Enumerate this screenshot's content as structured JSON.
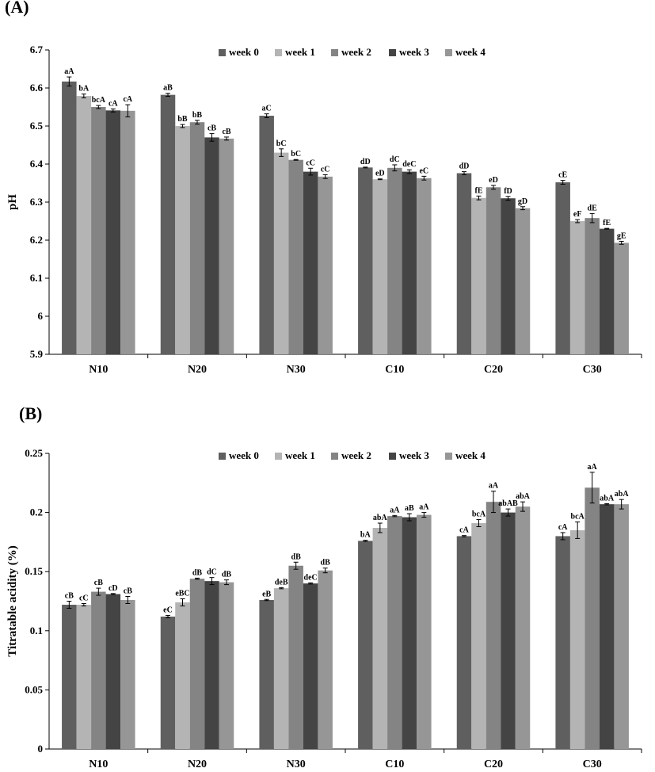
{
  "panels": {
    "a_label": "(A)",
    "b_label": "(B)"
  },
  "chart_data": [
    {
      "type": "bar",
      "panel": "(A)",
      "title": "",
      "xlabel": "",
      "ylabel": "pH",
      "ylim": [
        5.9,
        6.7
      ],
      "yticks": [
        "5.9",
        "6",
        "6.1",
        "6.2",
        "6.3",
        "6.4",
        "6.5",
        "6.6",
        "6.7"
      ],
      "categories": [
        "N10",
        "N20",
        "N30",
        "C10",
        "C20",
        "C30"
      ],
      "legend_position": "top-center",
      "series": [
        {
          "name": "week 0",
          "color": "#5f5f5f",
          "values": [
            6.617,
            6.582,
            6.527,
            6.391,
            6.376,
            6.352
          ],
          "errors": [
            0.012,
            0.004,
            0.005,
            0.001,
            0.004,
            0.005
          ],
          "labels": [
            "aA",
            "aB",
            "aC",
            "dD",
            "dD",
            "cE"
          ]
        },
        {
          "name": "week 1",
          "color": "#b4b4b4",
          "values": [
            6.579,
            6.5,
            6.43,
            6.36,
            6.311,
            6.25
          ],
          "errors": [
            0.005,
            0.004,
            0.01,
            0.001,
            0.005,
            0.004
          ],
          "labels": [
            "bA",
            "bB",
            "bC",
            "eD",
            "fE",
            "eF"
          ]
        },
        {
          "name": "week 2",
          "color": "#848484",
          "values": [
            6.55,
            6.51,
            6.411,
            6.39,
            6.339,
            6.258
          ],
          "errors": [
            0.004,
            0.005,
            0.001,
            0.008,
            0.005,
            0.012
          ],
          "labels": [
            "bcA",
            "bB",
            "bC",
            "dC",
            "eD",
            "dE"
          ]
        },
        {
          "name": "week 3",
          "color": "#444444",
          "values": [
            6.541,
            6.47,
            6.38,
            6.38,
            6.31,
            6.23
          ],
          "errors": [
            0.004,
            0.01,
            0.009,
            0.005,
            0.005,
            0.001
          ],
          "labels": [
            "cA",
            "cB",
            "cC",
            "deC",
            "fD",
            "fE"
          ]
        },
        {
          "name": "week 4",
          "color": "#969696",
          "values": [
            6.54,
            6.467,
            6.367,
            6.363,
            6.284,
            6.193
          ],
          "errors": [
            0.016,
            0.004,
            0.005,
            0.005,
            0.004,
            0.004
          ],
          "labels": [
            "cA",
            "cB",
            "cC",
            "eC",
            "gD",
            "gE"
          ]
        }
      ]
    },
    {
      "type": "bar",
      "panel": "(B)",
      "title": "",
      "xlabel": "",
      "ylabel": "Titratable acidity (%)",
      "ylim": [
        0,
        0.25
      ],
      "yticks": [
        "0",
        "0.05",
        "0.1",
        "0.15",
        "0.2",
        "0.25"
      ],
      "categories": [
        "N10",
        "N20",
        "N30",
        "C10",
        "C20",
        "C30"
      ],
      "legend_position": "top-center",
      "series": [
        {
          "name": "week 0",
          "color": "#5f5f5f",
          "values": [
            0.122,
            0.112,
            0.126,
            0.176,
            0.18,
            0.18
          ],
          "errors": [
            0.003,
            0.001,
            0.0005,
            0.0005,
            0.0005,
            0.003
          ],
          "labels": [
            "cB",
            "eC",
            "eB",
            "bA",
            "cA",
            "cA"
          ]
        },
        {
          "name": "week 1",
          "color": "#b4b4b4",
          "values": [
            0.122,
            0.124,
            0.136,
            0.187,
            0.191,
            0.185
          ],
          "errors": [
            0.001,
            0.003,
            0.0005,
            0.004,
            0.003,
            0.007
          ],
          "labels": [
            "cC",
            "eBC",
            "deB",
            "abA",
            "bcA",
            "bcA"
          ]
        },
        {
          "name": "week 2",
          "color": "#848484",
          "values": [
            0.133,
            0.144,
            0.155,
            0.197,
            0.209,
            0.221
          ],
          "errors": [
            0.003,
            0.0005,
            0.003,
            0.0005,
            0.009,
            0.013
          ],
          "labels": [
            "cB",
            "dB",
            "dB",
            "aA",
            "aA",
            "aA"
          ]
        },
        {
          "name": "week 3",
          "color": "#444444",
          "values": [
            0.131,
            0.142,
            0.14,
            0.196,
            0.2,
            0.207
          ],
          "errors": [
            0.0005,
            0.003,
            0.0005,
            0.003,
            0.003,
            0.0005
          ],
          "labels": [
            "cD",
            "dC",
            "deC",
            "aB",
            "abAB",
            "abA"
          ]
        },
        {
          "name": "week 4",
          "color": "#969696",
          "values": [
            0.126,
            0.141,
            0.151,
            0.198,
            0.205,
            0.207
          ],
          "errors": [
            0.003,
            0.002,
            0.002,
            0.002,
            0.004,
            0.004
          ],
          "labels": [
            "cB",
            "dB",
            "dB",
            "aA",
            "abA",
            "abA"
          ]
        }
      ]
    }
  ]
}
